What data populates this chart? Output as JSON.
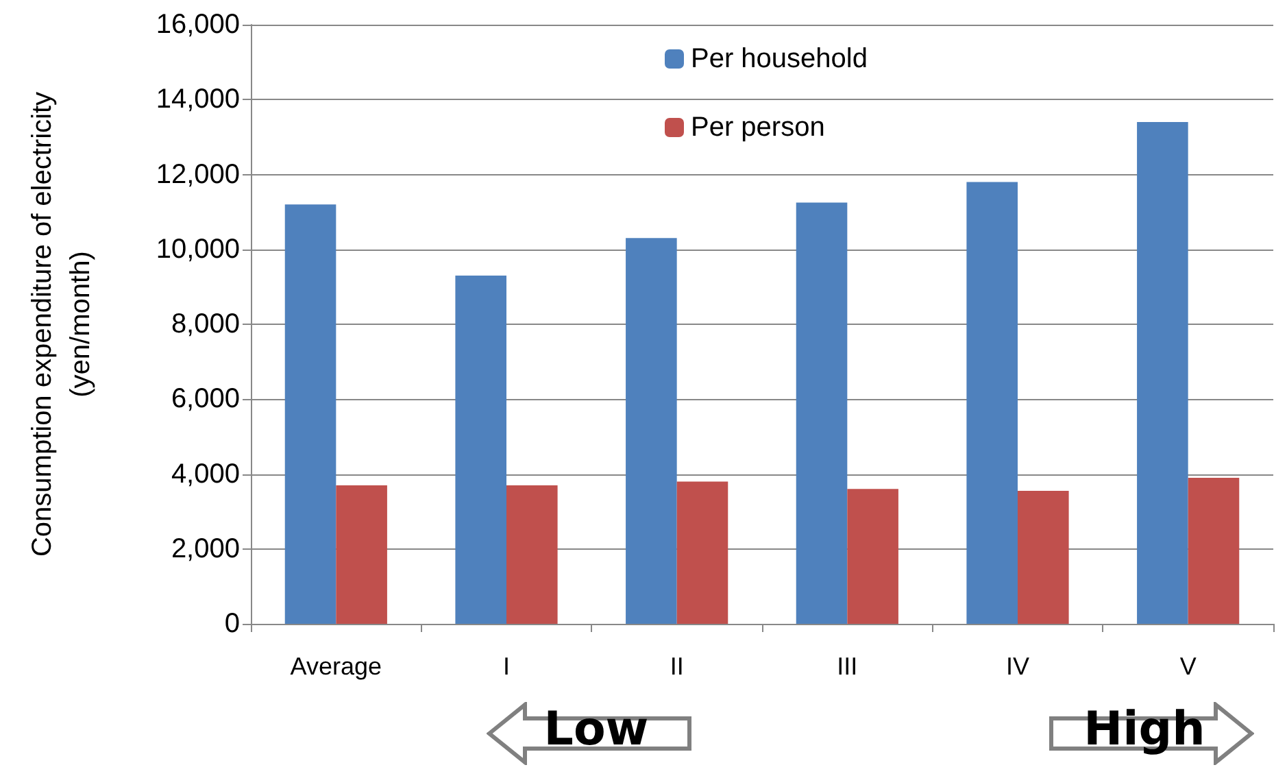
{
  "chart_data": {
    "type": "bar",
    "ylabel": "Consumption expenditure of electricity\n(yen/month)",
    "categories": [
      "Average",
      "I",
      "II",
      "III",
      "IV",
      "V"
    ],
    "series": [
      {
        "name": "Per household",
        "color": "#4f81bd",
        "values": [
          11200,
          9300,
          10300,
          11250,
          11800,
          13400
        ]
      },
      {
        "name": "Per person",
        "color": "#c0504d",
        "values": [
          3700,
          3700,
          3800,
          3600,
          3550,
          3900
        ]
      }
    ],
    "ylim": [
      0,
      16000
    ],
    "yticks": [
      0,
      {
        "value": 2000,
        "label": "2,000"
      },
      {
        "value": 4000,
        "label": "4,000"
      },
      {
        "value": 6000,
        "label": "6,000"
      },
      {
        "value": 8000,
        "label": "8,000"
      },
      {
        "value": 10000,
        "label": "10,000"
      },
      {
        "value": 12000,
        "label": "12,000"
      },
      {
        "value": 14000,
        "label": "14,000"
      },
      {
        "value": 16000,
        "label": "16,000"
      }
    ],
    "grid": "y",
    "legend": "top",
    "annotations": [
      "Low",
      "High"
    ]
  }
}
